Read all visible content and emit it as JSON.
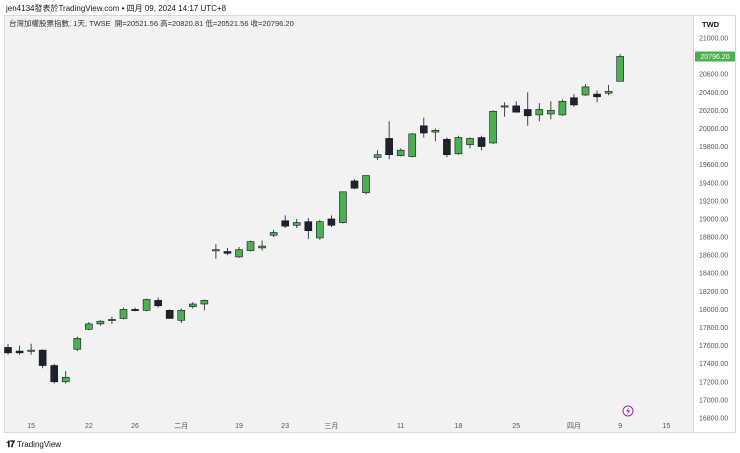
{
  "header": {
    "author_line": "jen4134發表於TradingView.com • 四月 09, 2024 14:17 UTC+8"
  },
  "symbol": {
    "name": "台灣加權股票指數, 1天, TWSE",
    "ohlc": "開=20521.56 高=20820.81 低=20521.56 收=20796.20"
  },
  "currency": "TWD",
  "last_price_label": "20796.20",
  "footer": {
    "logo_icon": "tradingview-logo-icon",
    "brand": "TradingView"
  },
  "event_marker_icon": "lightning-icon",
  "colors": {
    "up": "#4caf50",
    "down": "#1e222d",
    "last_price_bg": "#4caf50",
    "marker": "#9c27b0"
  },
  "chart_data": {
    "type": "candlestick",
    "title": "台灣加權股票指數",
    "ylim": [
      16800,
      21200
    ],
    "y_ticks": [
      16800,
      17000,
      17200,
      17400,
      17600,
      17800,
      18000,
      18200,
      18400,
      18600,
      18800,
      19000,
      19200,
      19400,
      19600,
      19800,
      20000,
      20200,
      20400,
      20600,
      21000
    ],
    "x_tick_labels": [
      {
        "label": "15",
        "index": 2
      },
      {
        "label": "22",
        "index": 7
      },
      {
        "label": "26",
        "index": 11
      },
      {
        "label": "二月",
        "index": 15
      },
      {
        "label": "19",
        "index": 20
      },
      {
        "label": "23",
        "index": 24
      },
      {
        "label": "三月",
        "index": 28
      },
      {
        "label": "11",
        "index": 34
      },
      {
        "label": "18",
        "index": 39
      },
      {
        "label": "25",
        "index": 44
      },
      {
        "label": "四月",
        "index": 49
      },
      {
        "label": "9",
        "index": 53
      },
      {
        "label": "15",
        "index": 57
      }
    ],
    "candles": [
      {
        "o": 17580,
        "h": 17620,
        "l": 17500,
        "c": 17520
      },
      {
        "o": 17540,
        "h": 17600,
        "l": 17500,
        "c": 17520
      },
      {
        "o": 17540,
        "h": 17620,
        "l": 17500,
        "c": 17550
      },
      {
        "o": 17550,
        "h": 17560,
        "l": 17350,
        "c": 17380
      },
      {
        "o": 17380,
        "h": 17400,
        "l": 17180,
        "c": 17200
      },
      {
        "o": 17200,
        "h": 17320,
        "l": 17180,
        "c": 17250
      },
      {
        "o": 17560,
        "h": 17700,
        "l": 17540,
        "c": 17680
      },
      {
        "o": 17780,
        "h": 17860,
        "l": 17770,
        "c": 17840
      },
      {
        "o": 17840,
        "h": 17880,
        "l": 17820,
        "c": 17870
      },
      {
        "o": 17880,
        "h": 17920,
        "l": 17840,
        "c": 17890
      },
      {
        "o": 17900,
        "h": 18020,
        "l": 17890,
        "c": 18000
      },
      {
        "o": 18000,
        "h": 18020,
        "l": 17980,
        "c": 17990
      },
      {
        "o": 17990,
        "h": 18120,
        "l": 17980,
        "c": 18110
      },
      {
        "o": 18100,
        "h": 18130,
        "l": 18020,
        "c": 18040
      },
      {
        "o": 17990,
        "h": 18000,
        "l": 17900,
        "c": 17900
      },
      {
        "o": 17880,
        "h": 18010,
        "l": 17850,
        "c": 17990
      },
      {
        "o": 18030,
        "h": 18080,
        "l": 18010,
        "c": 18060
      },
      {
        "o": 18060,
        "h": 18110,
        "l": 17990,
        "c": 18100
      },
      {
        "o": 18650,
        "h": 18720,
        "l": 18560,
        "c": 18660
      },
      {
        "o": 18640,
        "h": 18680,
        "l": 18600,
        "c": 18620
      },
      {
        "o": 18580,
        "h": 18690,
        "l": 18570,
        "c": 18660
      },
      {
        "o": 18650,
        "h": 18760,
        "l": 18640,
        "c": 18750
      },
      {
        "o": 18680,
        "h": 18760,
        "l": 18650,
        "c": 18700
      },
      {
        "o": 18820,
        "h": 18880,
        "l": 18800,
        "c": 18850
      },
      {
        "o": 18980,
        "h": 19040,
        "l": 18900,
        "c": 18920
      },
      {
        "o": 18930,
        "h": 19000,
        "l": 18900,
        "c": 18960
      },
      {
        "o": 18970,
        "h": 19010,
        "l": 18780,
        "c": 18870
      },
      {
        "o": 18790,
        "h": 18990,
        "l": 18770,
        "c": 18970
      },
      {
        "o": 19000,
        "h": 19040,
        "l": 18910,
        "c": 18930
      },
      {
        "o": 18960,
        "h": 19300,
        "l": 18950,
        "c": 19300
      },
      {
        "o": 19420,
        "h": 19440,
        "l": 19330,
        "c": 19340
      },
      {
        "o": 19290,
        "h": 19480,
        "l": 19270,
        "c": 19480
      },
      {
        "o": 19680,
        "h": 19760,
        "l": 19650,
        "c": 19710
      },
      {
        "o": 19890,
        "h": 20080,
        "l": 19660,
        "c": 19710
      },
      {
        "o": 19700,
        "h": 19780,
        "l": 19690,
        "c": 19760
      },
      {
        "o": 19690,
        "h": 19950,
        "l": 19680,
        "c": 19940
      },
      {
        "o": 20030,
        "h": 20120,
        "l": 19900,
        "c": 19950
      },
      {
        "o": 19960,
        "h": 20000,
        "l": 19860,
        "c": 19980
      },
      {
        "o": 19880,
        "h": 19900,
        "l": 19680,
        "c": 19710
      },
      {
        "o": 19720,
        "h": 19920,
        "l": 19710,
        "c": 19900
      },
      {
        "o": 19820,
        "h": 19900,
        "l": 19780,
        "c": 19890
      },
      {
        "o": 19900,
        "h": 19920,
        "l": 19760,
        "c": 19800
      },
      {
        "o": 19840,
        "h": 20200,
        "l": 19830,
        "c": 20190
      },
      {
        "o": 20240,
        "h": 20290,
        "l": 20130,
        "c": 20250
      },
      {
        "o": 20250,
        "h": 20300,
        "l": 20180,
        "c": 20180
      },
      {
        "o": 20210,
        "h": 20400,
        "l": 20030,
        "c": 20140
      },
      {
        "o": 20150,
        "h": 20280,
        "l": 20080,
        "c": 20210
      },
      {
        "o": 20160,
        "h": 20300,
        "l": 20100,
        "c": 20200
      },
      {
        "o": 20150,
        "h": 20320,
        "l": 20140,
        "c": 20300
      },
      {
        "o": 20340,
        "h": 20380,
        "l": 20240,
        "c": 20260
      },
      {
        "o": 20370,
        "h": 20490,
        "l": 20360,
        "c": 20460
      },
      {
        "o": 20380,
        "h": 20420,
        "l": 20290,
        "c": 20350
      },
      {
        "o": 20390,
        "h": 20480,
        "l": 20370,
        "c": 20410
      },
      {
        "o": 20521.56,
        "h": 20820.81,
        "l": 20521.56,
        "c": 20796.2
      }
    ]
  }
}
